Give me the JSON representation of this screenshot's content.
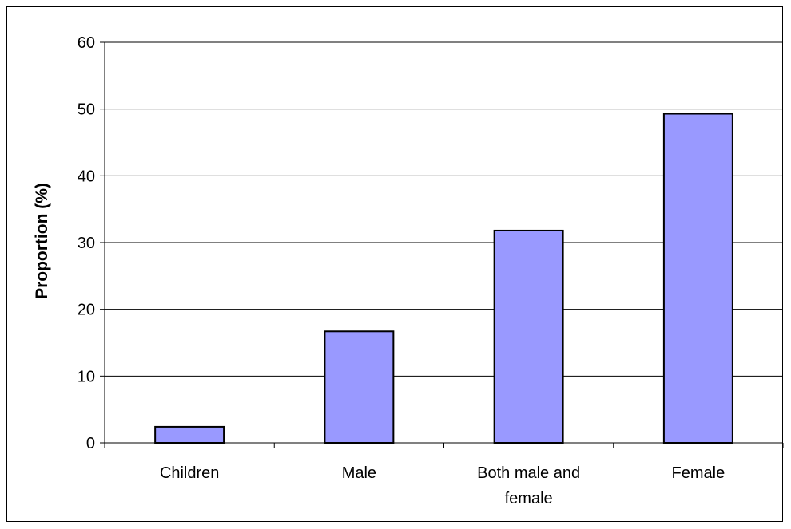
{
  "chart_data": {
    "type": "bar",
    "title": "",
    "xlabel": "",
    "ylabel": "Proportion (%)",
    "categories": [
      "Children",
      "Male",
      "Both male and female",
      "Female"
    ],
    "category_label_lines": [
      [
        "Children"
      ],
      [
        "Male"
      ],
      [
        "Both male and",
        "female"
      ],
      [
        "Female"
      ]
    ],
    "values": [
      2.4,
      16.7,
      31.8,
      49.3
    ],
    "ylim": [
      0,
      60
    ],
    "yticks": [
      0,
      10,
      20,
      30,
      40,
      50,
      60
    ],
    "grid": true,
    "legend": "none",
    "bar_color": "#9999ff",
    "bar_edge_color": "#000000"
  }
}
